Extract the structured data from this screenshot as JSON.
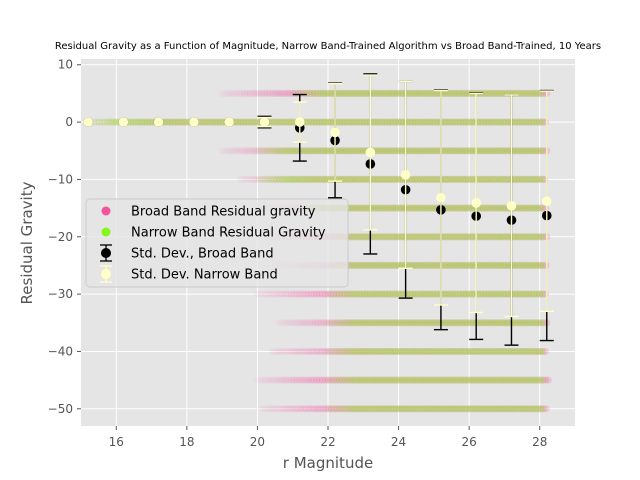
{
  "chart_data": {
    "type": "scatter",
    "title": "Residual Gravity as a Function of Magnitude, Narrow Band-Trained Algorithm vs Broad Band-Trained, 10 Years",
    "xlabel": "r Magnitude",
    "ylabel": "Residual Gravity",
    "xlim": [
      15.0,
      29.0
    ],
    "ylim": [
      -53.0,
      11.0
    ],
    "xticks": [
      16,
      18,
      20,
      22,
      24,
      26,
      28
    ],
    "yticks": [
      10,
      0,
      -10,
      -20,
      -30,
      -40,
      -50
    ],
    "xtick_labels": [
      "16",
      "18",
      "20",
      "22",
      "24",
      "26",
      "28"
    ],
    "ytick_labels": [
      "10",
      "0",
      "−10",
      "−20",
      "−30",
      "−40",
      "−50"
    ],
    "grid": true,
    "legend_position": "center-left",
    "colors": {
      "background": "#e5e5e5",
      "grid": "#ffffff",
      "broad_scatter": "#f0559d",
      "narrow_scatter": "#86f51b",
      "broad_errorbar": "#000000",
      "narrow_errorbar": "#ffffc8"
    },
    "series": [
      {
        "name": "Broad Band Residual gravity",
        "kind": "scatter",
        "bands": [
          {
            "y": 5,
            "x_range": [
              19.0,
              28.2
            ]
          },
          {
            "y": 0,
            "x_range": [
              15.2,
              28.2
            ]
          },
          {
            "y": -5,
            "x_range": [
              19.0,
              28.2
            ]
          },
          {
            "y": -10,
            "x_range": [
              19.5,
              28.2
            ]
          },
          {
            "y": -15,
            "x_range": [
              20.0,
              28.2
            ]
          },
          {
            "y": -20,
            "x_range": [
              20.2,
              28.2
            ]
          },
          {
            "y": -25,
            "x_range": [
              20.5,
              28.2
            ]
          },
          {
            "y": -30,
            "x_range": [
              20.0,
              28.2
            ]
          },
          {
            "y": -35,
            "x_range": [
              20.6,
              28.2
            ]
          },
          {
            "y": -40,
            "x_range": [
              20.4,
              28.2
            ]
          },
          {
            "y": -45,
            "x_range": [
              20.0,
              28.3
            ]
          },
          {
            "y": -50,
            "x_range": [
              20.1,
              28.2
            ]
          }
        ]
      },
      {
        "name": "Narrow Band Residual Gravity",
        "kind": "scatter",
        "bands": [
          {
            "y": 5,
            "x_range": [
              21.0,
              28.1
            ]
          },
          {
            "y": 0,
            "x_range": [
              15.2,
              28.1
            ]
          },
          {
            "y": -5,
            "x_range": [
              20.0,
              28.1
            ]
          },
          {
            "y": -10,
            "x_range": [
              20.0,
              28.1
            ]
          },
          {
            "y": -15,
            "x_range": [
              21.0,
              28.1
            ]
          },
          {
            "y": -20,
            "x_range": [
              22.0,
              28.1
            ]
          },
          {
            "y": -25,
            "x_range": [
              22.0,
              28.1
            ]
          },
          {
            "y": -30,
            "x_range": [
              22.0,
              28.1
            ]
          },
          {
            "y": -35,
            "x_range": [
              22.0,
              28.1
            ]
          },
          {
            "y": -40,
            "x_range": [
              22.0,
              28.1
            ]
          },
          {
            "y": -45,
            "x_range": [
              22.0,
              28.1
            ]
          },
          {
            "y": -50,
            "x_range": [
              22.0,
              28.1
            ]
          }
        ]
      },
      {
        "name": "Std. Dev., Broad Band",
        "kind": "errorbar",
        "x": [
          15.2,
          16.2,
          17.2,
          18.2,
          19.2,
          20.2,
          21.2,
          22.2,
          23.2,
          24.2,
          25.2,
          26.2,
          27.2,
          28.2
        ],
        "y": [
          0.0,
          0.0,
          0.0,
          0.0,
          0.0,
          0.0,
          -1.0,
          -3.2,
          -7.3,
          -11.8,
          -15.3,
          -16.4,
          -17.1,
          -16.3
        ],
        "yerr": [
          0.0,
          0.0,
          0.0,
          0.0,
          0.0,
          1.0,
          5.8,
          10.0,
          15.7,
          18.9,
          20.9,
          21.5,
          21.8,
          21.8
        ]
      },
      {
        "name": "Std. Dev. Narrow Band",
        "kind": "errorbar",
        "x": [
          15.2,
          16.2,
          17.2,
          18.2,
          19.2,
          20.2,
          21.2,
          22.2,
          23.2,
          24.2,
          25.2,
          26.2,
          27.2,
          28.2
        ],
        "y": [
          0.0,
          0.0,
          0.0,
          0.0,
          0.0,
          0.0,
          0.0,
          -1.8,
          -5.3,
          -9.2,
          -13.2,
          -14.1,
          -14.6,
          -13.8
        ],
        "yerr": [
          0.0,
          0.0,
          0.0,
          0.0,
          0.0,
          0.8,
          3.5,
          8.5,
          13.5,
          16.3,
          18.7,
          19.1,
          19.3,
          19.2
        ]
      }
    ]
  }
}
